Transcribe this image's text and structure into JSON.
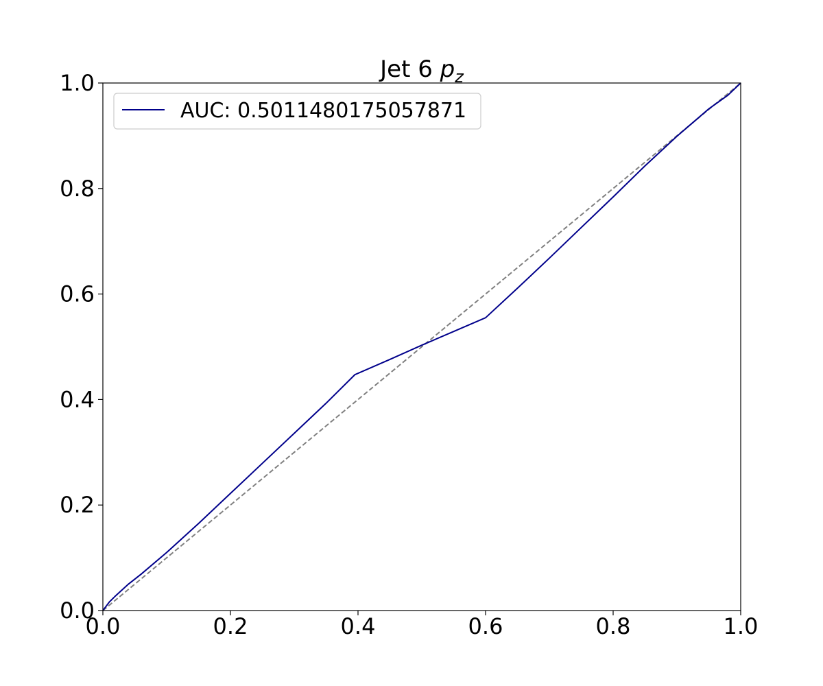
{
  "chart_data": {
    "type": "line",
    "title": {
      "prefix": "Jet 6 ",
      "math_base": "p",
      "math_sub": "z"
    },
    "xlabel": "",
    "ylabel": "",
    "xlim": [
      0.0,
      1.0
    ],
    "ylim": [
      0.0,
      1.0
    ],
    "x_ticks": [
      "0.0",
      "0.2",
      "0.4",
      "0.6",
      "0.8",
      "1.0"
    ],
    "y_ticks": [
      "0.0",
      "0.2",
      "0.4",
      "0.6",
      "0.8",
      "1.0"
    ],
    "grid": false,
    "legend": {
      "position": "top-left",
      "entries": [
        "AUC: 0.5011480175057871"
      ]
    },
    "series": [
      {
        "name": "AUC: 0.5011480175057871",
        "color": "#00008b",
        "style": "solid",
        "x": [
          0.0,
          0.005,
          0.01,
          0.02,
          0.04,
          0.06,
          0.1,
          0.15,
          0.2,
          0.25,
          0.3,
          0.35,
          0.395,
          0.45,
          0.5,
          0.55,
          0.6,
          0.65,
          0.7,
          0.75,
          0.8,
          0.85,
          0.9,
          0.95,
          0.98,
          1.0
        ],
        "y": [
          0.0,
          0.008,
          0.016,
          0.028,
          0.05,
          0.069,
          0.11,
          0.165,
          0.222,
          0.279,
          0.336,
          0.393,
          0.447,
          0.476,
          0.503,
          0.529,
          0.555,
          0.611,
          0.668,
          0.726,
          0.784,
          0.843,
          0.899,
          0.951,
          0.977,
          1.0
        ]
      },
      {
        "color": "#808080",
        "style": "dashed",
        "x": [
          0.0,
          1.0
        ],
        "y": [
          0.0,
          1.0
        ]
      }
    ]
  }
}
